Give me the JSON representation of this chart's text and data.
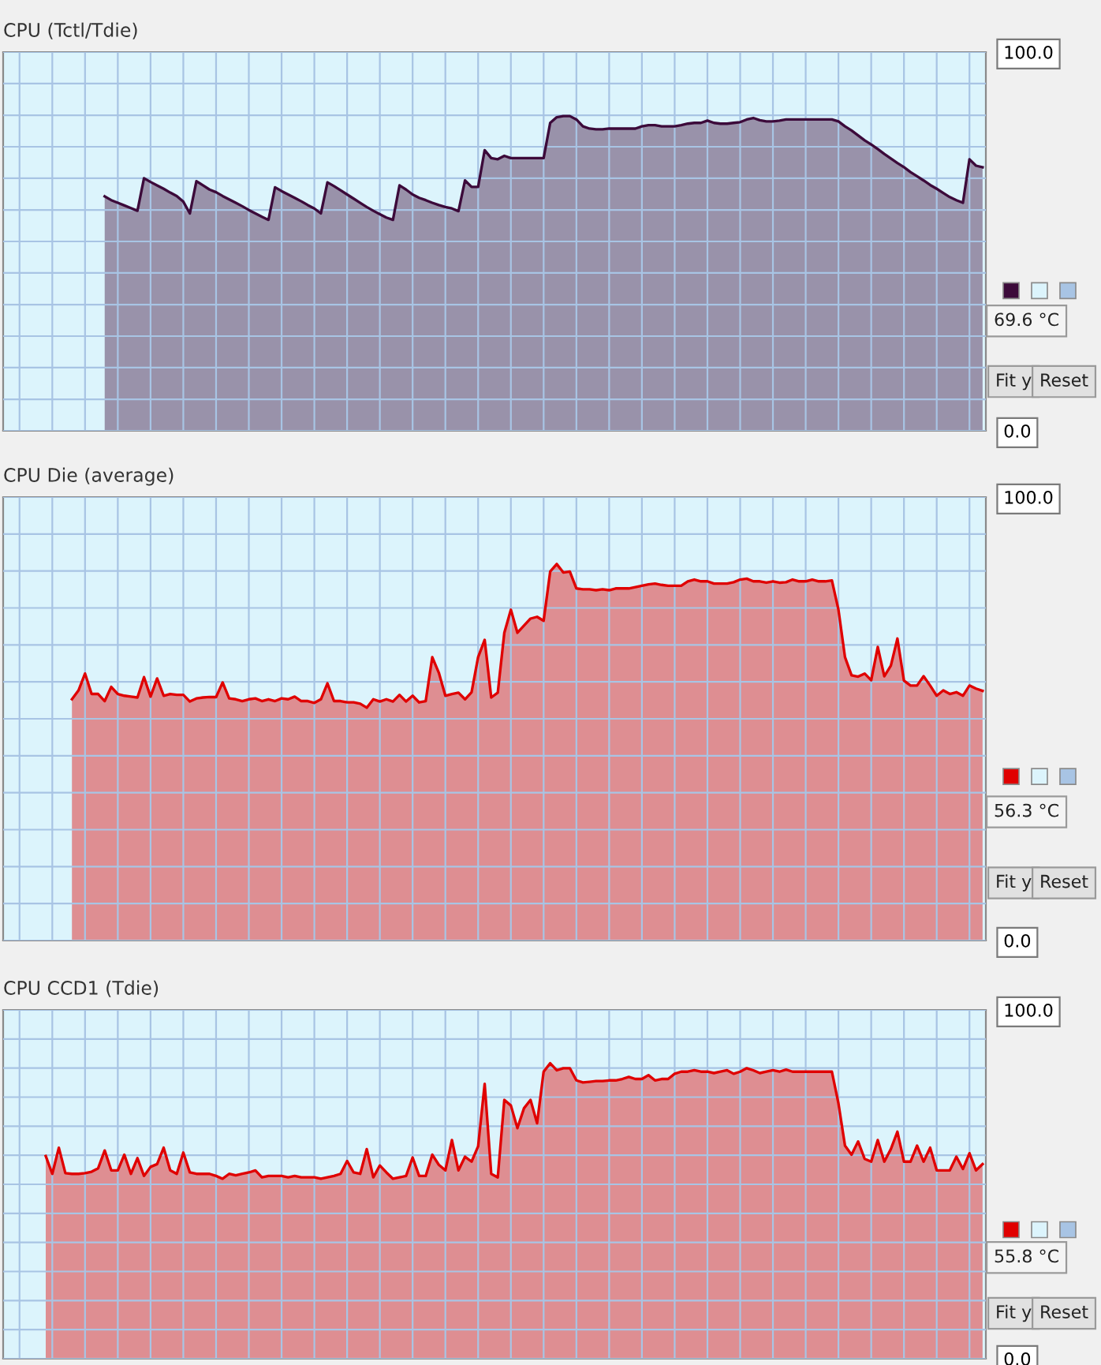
{
  "chart_data": [
    {
      "type": "area",
      "title": "CPU (Tctl/Tdie)",
      "categories": [
        null,
        null,
        null,
        null,
        null,
        null,
        null,
        null,
        null,
        null,
        null,
        null,
        null,
        null,
        null,
        null,
        null,
        null,
        null,
        null,
        null,
        null,
        null,
        null,
        null,
        null,
        null,
        null,
        null,
        null,
        null,
        null,
        null,
        null,
        null,
        null,
        null,
        null,
        null,
        null,
        null,
        null,
        null,
        null,
        null,
        null,
        null,
        null,
        null,
        null,
        null,
        null,
        null,
        null,
        null,
        null,
        null,
        null,
        null,
        null,
        null,
        null,
        null,
        null,
        null,
        null,
        null,
        null,
        null,
        null,
        null,
        null,
        null,
        null,
        null,
        null,
        null,
        null,
        null,
        null,
        null,
        null,
        null,
        null,
        null,
        null,
        null,
        null,
        null,
        null,
        null,
        null,
        null,
        null,
        null,
        null,
        null,
        null,
        null,
        null,
        null,
        null,
        null,
        null,
        null,
        null,
        null,
        null,
        null,
        null,
        null,
        null,
        null,
        null,
        null,
        null,
        null,
        null,
        null,
        null,
        null,
        null,
        null,
        null,
        null,
        null,
        null,
        null,
        null,
        null,
        null,
        null,
        null,
        null,
        null,
        null,
        null,
        null,
        null,
        null,
        null,
        null,
        null,
        null,
        null,
        null,
        null,
        null,
        null,
        null
      ],
      "series": [
        {
          "color": "#3c0a3a",
          "values": [
            null,
            null,
            null,
            null,
            null,
            null,
            null,
            null,
            null,
            null,
            null,
            null,
            null,
            null,
            null,
            61.9,
            60.9,
            60.2,
            59.5,
            58.8,
            58.1,
            66.7,
            65.7,
            64.8,
            63.9,
            62.9,
            62.0,
            60.5,
            57.4,
            65.9,
            64.8,
            63.7,
            63.0,
            62.0,
            61.1,
            60.2,
            59.3,
            58.3,
            57.4,
            56.5,
            55.7,
            64.3,
            63.3,
            62.4,
            61.5,
            60.6,
            59.6,
            58.7,
            57.4,
            65.6,
            64.6,
            63.5,
            62.4,
            61.3,
            60.2,
            59.1,
            58.1,
            57.2,
            56.3,
            55.7,
            64.8,
            63.7,
            62.4,
            61.5,
            60.9,
            60.2,
            59.6,
            59.1,
            58.7,
            58.0,
            66.1,
            64.4,
            64.4,
            74.1,
            72.0,
            71.7,
            72.6,
            72.0,
            72.0,
            72.0,
            72.0,
            72.0,
            72.0,
            81.3,
            82.8,
            83.1,
            83.1,
            82.2,
            80.4,
            79.8,
            79.6,
            79.6,
            79.8,
            79.8,
            79.8,
            79.8,
            79.8,
            80.4,
            80.7,
            80.7,
            80.4,
            80.4,
            80.4,
            80.7,
            81.1,
            81.3,
            81.3,
            81.9,
            81.3,
            81.1,
            81.1,
            81.3,
            81.5,
            82.2,
            82.6,
            82.0,
            81.7,
            81.7,
            81.9,
            82.2,
            82.2,
            82.2,
            82.2,
            82.2,
            82.2,
            82.2,
            82.2,
            81.7,
            80.4,
            79.3,
            78.0,
            76.7,
            75.6,
            74.4,
            73.1,
            71.9,
            70.7,
            69.6,
            68.3,
            67.2,
            66.1,
            64.9,
            63.9,
            62.8,
            61.7,
            60.9,
            60.2,
            71.7,
            70.0,
            69.6
          ]
        }
      ],
      "ylim": [
        0,
        100
      ],
      "yticks": [
        {
          "value": 0,
          "label": "0.0"
        },
        {
          "value": 8.33,
          "label": null
        },
        {
          "value": 16.67,
          "label": null
        },
        {
          "value": 25,
          "label": null
        },
        {
          "value": 33.33,
          "label": null
        },
        {
          "value": 41.67,
          "label": null
        },
        {
          "value": 50,
          "label": null
        },
        {
          "value": 58.33,
          "label": null
        },
        {
          "value": 66.67,
          "label": null
        },
        {
          "value": 75,
          "label": null
        },
        {
          "value": 83.33,
          "label": null
        },
        {
          "value": 91.67,
          "label": null
        },
        {
          "value": 100,
          "label": "100.0"
        }
      ],
      "grid": true,
      "tick_labels": "y",
      "annotations": [
        "69.6 °C",
        "Fit y",
        "Reset"
      ]
    },
    {
      "type": "area",
      "title": "CPU Die (average)",
      "categories": [
        null,
        null,
        null,
        null,
        null,
        null,
        null,
        null,
        null,
        null,
        null,
        null,
        null,
        null,
        null,
        null,
        null,
        null,
        null,
        null,
        null,
        null,
        null,
        null,
        null,
        null,
        null,
        null,
        null,
        null,
        null,
        null,
        null,
        null,
        null,
        null,
        null,
        null,
        null,
        null,
        null,
        null,
        null,
        null,
        null,
        null,
        null,
        null,
        null,
        null,
        null,
        null,
        null,
        null,
        null,
        null,
        null,
        null,
        null,
        null,
        null,
        null,
        null,
        null,
        null,
        null,
        null,
        null,
        null,
        null,
        null,
        null,
        null,
        null,
        null,
        null,
        null,
        null,
        null,
        null,
        null,
        null,
        null,
        null,
        null,
        null,
        null,
        null,
        null,
        null,
        null,
        null,
        null,
        null,
        null,
        null,
        null,
        null,
        null,
        null,
        null,
        null,
        null,
        null,
        null,
        null,
        null,
        null,
        null,
        null,
        null,
        null,
        null,
        null,
        null,
        null,
        null,
        null,
        null,
        null,
        null,
        null,
        null,
        null,
        null,
        null,
        null,
        null,
        null,
        null,
        null,
        null,
        null,
        null,
        null,
        null,
        null,
        null,
        null,
        null,
        null,
        null,
        null,
        null,
        null,
        null,
        null,
        null,
        null,
        null
      ],
      "series": [
        {
          "color": "#e00000",
          "values": [
            null,
            null,
            null,
            null,
            null,
            null,
            null,
            null,
            null,
            null,
            54.4,
            56.4,
            60.2,
            55.6,
            55.6,
            54.0,
            57.2,
            55.6,
            55.2,
            55.0,
            54.8,
            59.4,
            55.0,
            59.1,
            55.2,
            55.6,
            55.4,
            55.4,
            53.9,
            54.6,
            54.8,
            54.9,
            54.9,
            58.2,
            54.6,
            54.4,
            54.0,
            54.4,
            54.6,
            54.0,
            54.4,
            54.0,
            54.6,
            54.4,
            55.0,
            54.0,
            54.0,
            53.6,
            54.4,
            58.0,
            54.0,
            54.0,
            53.7,
            53.7,
            53.4,
            52.5,
            54.4,
            53.9,
            54.4,
            53.9,
            55.4,
            53.9,
            55.2,
            53.7,
            54.0,
            63.9,
            60.4,
            55.2,
            55.6,
            55.9,
            54.4,
            56.0,
            63.9,
            67.8,
            54.8,
            55.9,
            69.4,
            74.6,
            69.4,
            71.0,
            72.6,
            73.0,
            72.1,
            83.2,
            84.9,
            83.0,
            83.2,
            79.4,
            79.2,
            79.2,
            79.0,
            79.2,
            79.0,
            79.4,
            79.4,
            79.4,
            79.7,
            80.0,
            80.3,
            80.5,
            80.2,
            80.0,
            80.0,
            80.0,
            81.0,
            81.4,
            81.0,
            81.0,
            80.5,
            80.5,
            80.5,
            80.8,
            81.4,
            81.6,
            81.0,
            81.0,
            80.7,
            81.0,
            80.7,
            80.8,
            81.4,
            81.0,
            81.0,
            81.4,
            81.0,
            81.0,
            81.2,
            74.6,
            63.9,
            59.8,
            59.5,
            60.2,
            58.7,
            66.2,
            59.6,
            62.0,
            68.1,
            58.6,
            57.5,
            57.5,
            59.6,
            57.5,
            55.2,
            56.4,
            55.6,
            56.0,
            55.2,
            57.5,
            56.8,
            56.3
          ]
        }
      ],
      "ylim": [
        0,
        100
      ],
      "yticks": [
        {
          "value": 0,
          "label": "0.0"
        },
        {
          "value": 8.33,
          "label": null
        },
        {
          "value": 16.67,
          "label": null
        },
        {
          "value": 25,
          "label": null
        },
        {
          "value": 33.33,
          "label": null
        },
        {
          "value": 41.67,
          "label": null
        },
        {
          "value": 50,
          "label": null
        },
        {
          "value": 58.33,
          "label": null
        },
        {
          "value": 66.67,
          "label": null
        },
        {
          "value": 75,
          "label": null
        },
        {
          "value": 83.33,
          "label": null
        },
        {
          "value": 91.67,
          "label": null
        },
        {
          "value": 100,
          "label": "100.0"
        }
      ],
      "grid": true,
      "tick_labels": "y",
      "annotations": [
        "56.3 °C",
        "Fit y",
        "Reset"
      ]
    },
    {
      "type": "area",
      "title": "CPU CCD1 (Tdie)",
      "categories": [
        null,
        null,
        null,
        null,
        null,
        null,
        null,
        null,
        null,
        null,
        null,
        null,
        null,
        null,
        null,
        null,
        null,
        null,
        null,
        null,
        null,
        null,
        null,
        null,
        null,
        null,
        null,
        null,
        null,
        null,
        null,
        null,
        null,
        null,
        null,
        null,
        null,
        null,
        null,
        null,
        null,
        null,
        null,
        null,
        null,
        null,
        null,
        null,
        null,
        null,
        null,
        null,
        null,
        null,
        null,
        null,
        null,
        null,
        null,
        null,
        null,
        null,
        null,
        null,
        null,
        null,
        null,
        null,
        null,
        null,
        null,
        null,
        null,
        null,
        null,
        null,
        null,
        null,
        null,
        null,
        null,
        null,
        null,
        null,
        null,
        null,
        null,
        null,
        null,
        null,
        null,
        null,
        null,
        null,
        null,
        null,
        null,
        null,
        null,
        null,
        null,
        null,
        null,
        null,
        null,
        null,
        null,
        null,
        null,
        null,
        null,
        null,
        null,
        null,
        null,
        null,
        null,
        null,
        null,
        null,
        null,
        null,
        null,
        null,
        null,
        null,
        null,
        null,
        null,
        null,
        null,
        null,
        null,
        null,
        null,
        null,
        null,
        null,
        null,
        null,
        null,
        null,
        null,
        null,
        null,
        null,
        null,
        null,
        null,
        null
      ],
      "series": [
        {
          "color": "#e00000",
          "values": [
            null,
            null,
            null,
            null,
            null,
            null,
            58.1,
            53.0,
            60.5,
            53.2,
            53.0,
            53.0,
            53.2,
            53.6,
            54.6,
            59.7,
            54.0,
            54.0,
            58.5,
            53.0,
            57.5,
            52.4,
            55.0,
            55.8,
            60.5,
            54.0,
            53.0,
            59.1,
            53.4,
            53.0,
            53.0,
            53.0,
            52.4,
            51.6,
            53.0,
            52.6,
            53.0,
            53.4,
            54.0,
            52.0,
            52.4,
            52.4,
            52.4,
            52.0,
            52.4,
            52.0,
            52.0,
            52.0,
            51.6,
            52.0,
            52.4,
            53.0,
            56.7,
            53.4,
            53.0,
            60.1,
            52.0,
            55.4,
            53.4,
            51.6,
            52.0,
            52.4,
            57.7,
            52.4,
            52.4,
            58.5,
            55.6,
            54.0,
            62.7,
            54.0,
            57.9,
            56.5,
            60.9,
            78.8,
            53.0,
            52.0,
            74.2,
            72.6,
            66.1,
            71.8,
            74.2,
            67.5,
            82.3,
            84.7,
            82.7,
            83.3,
            83.3,
            79.8,
            79.2,
            79.4,
            79.6,
            79.6,
            79.8,
            79.8,
            80.2,
            80.8,
            80.2,
            80.2,
            81.3,
            79.8,
            80.2,
            80.2,
            81.7,
            82.3,
            82.3,
            82.7,
            82.3,
            82.3,
            81.9,
            82.3,
            82.7,
            81.7,
            82.3,
            83.3,
            82.7,
            81.9,
            82.3,
            82.7,
            82.3,
            82.9,
            82.3,
            82.3,
            82.3,
            82.3,
            82.3,
            82.3,
            82.3,
            73.2,
            61.1,
            58.5,
            62.3,
            57.3,
            56.5,
            62.7,
            56.5,
            60.1,
            65.1,
            56.5,
            56.5,
            61.1,
            56.5,
            60.5,
            54.0,
            54.0,
            54.0,
            57.9,
            54.4,
            58.9,
            54.0,
            55.8
          ]
        }
      ],
      "ylim": [
        0,
        100
      ],
      "yticks": [
        {
          "value": 0,
          "label": "0.0"
        },
        {
          "value": 8.33,
          "label": null
        },
        {
          "value": 16.67,
          "label": null
        },
        {
          "value": 25,
          "label": null
        },
        {
          "value": 33.33,
          "label": null
        },
        {
          "value": 41.67,
          "label": null
        },
        {
          "value": 50,
          "label": null
        },
        {
          "value": 58.33,
          "label": null
        },
        {
          "value": 66.67,
          "label": null
        },
        {
          "value": 75,
          "label": null
        },
        {
          "value": 83.33,
          "label": null
        },
        {
          "value": 91.67,
          "label": null
        },
        {
          "value": 100,
          "label": "100.0"
        }
      ],
      "grid": true,
      "tick_labels": "y",
      "annotations": [
        "55.8 °C",
        "Fit y",
        "Reset"
      ]
    }
  ]
}
